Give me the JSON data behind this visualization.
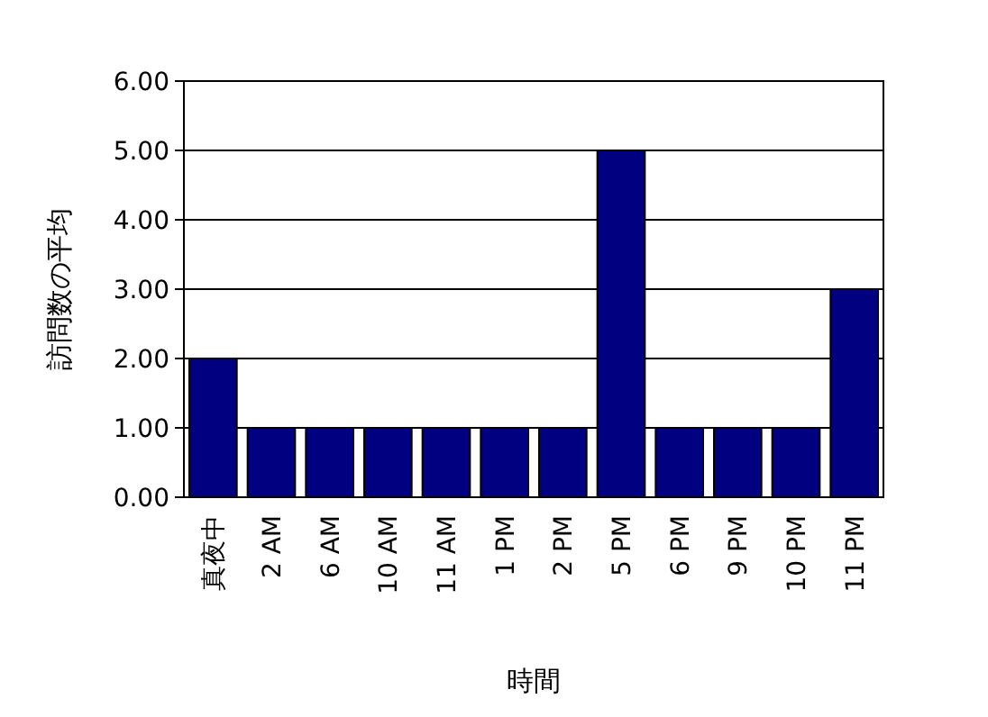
{
  "chart_data": {
    "type": "bar",
    "xlabel": "時間",
    "ylabel": "訪問数の平均",
    "categories": [
      "真夜中",
      "2 AM",
      "6 AM",
      "10 AM",
      "11 AM",
      "1 PM",
      "2 PM",
      "5 PM",
      "6 PM",
      "9 PM",
      "10 PM",
      "11 PM"
    ],
    "values": [
      2,
      1,
      1,
      1,
      1,
      1,
      1,
      5,
      1,
      1,
      1,
      3
    ],
    "color": "#000080",
    "ylim": [
      0,
      6
    ],
    "yticks": [
      {
        "value": 0,
        "label": "0.00"
      },
      {
        "value": 1,
        "label": "1.00"
      },
      {
        "value": 2,
        "label": "2.00"
      },
      {
        "value": 3,
        "label": "3.00"
      },
      {
        "value": 4,
        "label": "4.00"
      },
      {
        "value": 5,
        "label": "5.00"
      },
      {
        "value": 6,
        "label": "6.00"
      }
    ],
    "grid": "y"
  }
}
